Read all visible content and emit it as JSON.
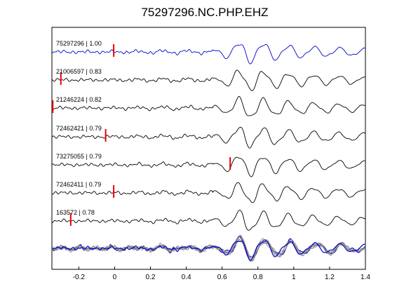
{
  "chart_data": {
    "type": "line",
    "title": "75297296.NC.PHP.EHZ",
    "xlabel": "",
    "ylabel": "",
    "xlim": [
      -0.35,
      1.4
    ],
    "xticks": [
      -0.2,
      0,
      0.2,
      0.4,
      0.6,
      0.8,
      1,
      1.2,
      1.4
    ],
    "xtick_labels": [
      "-0.2",
      "0",
      "0.2",
      "0.4",
      "0.6",
      "0.8",
      "1",
      "1.2",
      "1.4"
    ],
    "grid": false,
    "legend": "none",
    "template_color": "#0000cc",
    "trace_color": "#000000",
    "marker_color": "#ee0000",
    "stack_color": "#888888",
    "traces": [
      {
        "label": "75297296 | 1.00",
        "event_id": "75297296",
        "correlation": 1.0,
        "pick_time": -0.005,
        "color": "#0000cc"
      },
      {
        "label": "21006597 | 0.83",
        "event_id": "21006597",
        "correlation": 0.83,
        "pick_time": -0.3,
        "color": "#000000"
      },
      {
        "label": "21246224 | 0.82",
        "event_id": "21246224",
        "correlation": 0.82,
        "pick_time": -0.345,
        "color": "#000000"
      },
      {
        "label": "72462421 | 0.79",
        "event_id": "72462421",
        "correlation": 0.79,
        "pick_time": -0.05,
        "color": "#000000"
      },
      {
        "label": "73275055 | 0.79",
        "event_id": "73275055",
        "correlation": 0.79,
        "pick_time": 0.645,
        "color": "#000000"
      },
      {
        "label": "72462411 | 0.79",
        "event_id": "72462411",
        "correlation": 0.79,
        "pick_time": -0.005,
        "color": "#000000"
      },
      {
        "label": "163572 | 0.78",
        "event_id": "163572",
        "correlation": 0.78,
        "pick_time": -0.245,
        "color": "#000000"
      }
    ]
  }
}
